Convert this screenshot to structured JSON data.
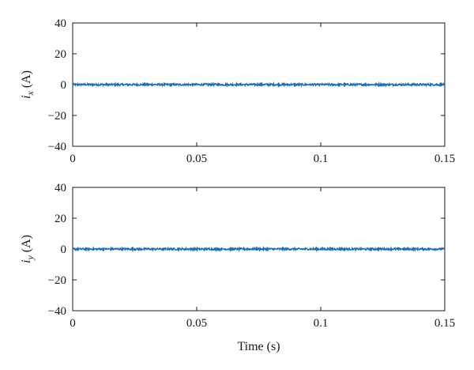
{
  "chart_data": [
    {
      "type": "line",
      "title": "",
      "xlabel": "",
      "ylabel": {
        "symbol": "i",
        "subscript": "x",
        "unit": "(A)"
      },
      "xlim": [
        0,
        0.15
      ],
      "ylim": [
        -40,
        40
      ],
      "xticks": [
        0,
        0.05,
        0.1,
        0.15
      ],
      "xtick_labels": [
        "0",
        "0.05",
        "0.1",
        "0.15"
      ],
      "yticks": [
        40,
        20,
        0,
        -20,
        -40
      ],
      "ytick_labels": [
        "40",
        "20",
        "0",
        "−20",
        "−40"
      ],
      "grid": false,
      "legend": "none",
      "series": [
        {
          "color": "#1f6fb4",
          "x": [
            0,
            0.15
          ],
          "y": [
            0,
            0
          ],
          "noise_band": [
            -0.6,
            0.6
          ]
        }
      ]
    },
    {
      "type": "line",
      "title": "",
      "xlabel": "Time (s)",
      "ylabel": {
        "symbol": "i",
        "subscript": "y",
        "unit": "(A)"
      },
      "xlim": [
        0,
        0.15
      ],
      "ylim": [
        -40,
        40
      ],
      "xticks": [
        0,
        0.05,
        0.1,
        0.15
      ],
      "xtick_labels": [
        "0",
        "0.05",
        "0.1",
        "0.15"
      ],
      "yticks": [
        40,
        20,
        0,
        -20,
        -40
      ],
      "ytick_labels": [
        "40",
        "20",
        "0",
        "−20",
        "−40"
      ],
      "grid": false,
      "legend": "none",
      "series": [
        {
          "color": "#1f6fb4",
          "x": [
            0,
            0.15
          ],
          "y": [
            0,
            0
          ],
          "noise_band": [
            -0.6,
            0.6
          ]
        }
      ]
    }
  ]
}
